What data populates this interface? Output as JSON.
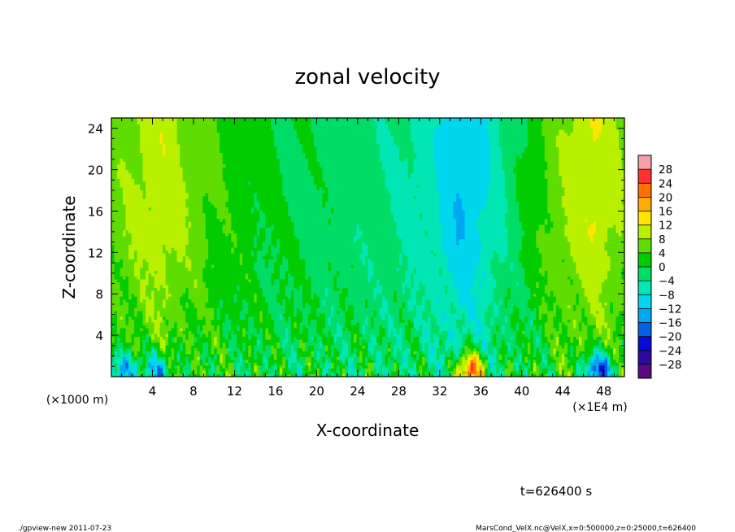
{
  "chart_data": {
    "type": "heatmap",
    "title": "zonal velocity",
    "xlabel": "X-coordinate",
    "ylabel": "Z-coordinate",
    "x_unit_label": "(×1E4 m)",
    "y_unit_label": "(×1000 m)",
    "xlim": [
      0,
      50
    ],
    "ylim": [
      0,
      25
    ],
    "x_ticks": [
      4,
      8,
      12,
      16,
      20,
      24,
      28,
      32,
      36,
      40,
      44,
      48
    ],
    "y_ticks": [
      4,
      8,
      12,
      16,
      20,
      24
    ],
    "colorbar": {
      "levels": [
        -28,
        -24,
        -20,
        -16,
        -12,
        -8,
        -4,
        0,
        4,
        8,
        12,
        16,
        20,
        24,
        28
      ],
      "labels": [
        "28",
        "24",
        "20",
        "16",
        "12",
        "8",
        "4",
        "0",
        "−4",
        "−8",
        "−12",
        "−16",
        "−20",
        "−24",
        "−28"
      ],
      "colors": [
        "#f5a0a8",
        "#ff3030",
        "#ff7000",
        "#ffaa00",
        "#ffe600",
        "#b8f000",
        "#60dd00",
        "#00cc00",
        "#00dd66",
        "#00e6b4",
        "#00d6ee",
        "#00a8f2",
        "#0060e8",
        "#0a0ad8",
        "#2a0aa0",
        "#5a0a80"
      ]
    },
    "features": {
      "column_means": [
        {
          "x": 0,
          "v": 6
        },
        {
          "x": 3,
          "v": 9
        },
        {
          "x": 5,
          "v": 11
        },
        {
          "x": 7,
          "v": 8
        },
        {
          "x": 10,
          "v": 4
        },
        {
          "x": 14,
          "v": 1
        },
        {
          "x": 20,
          "v": -1
        },
        {
          "x": 26,
          "v": -3
        },
        {
          "x": 31,
          "v": -6
        },
        {
          "x": 34,
          "v": -12
        },
        {
          "x": 36,
          "v": -9
        },
        {
          "x": 39,
          "v": -2
        },
        {
          "x": 43,
          "v": 6
        },
        {
          "x": 47,
          "v": 12
        },
        {
          "x": 50,
          "v": 7
        }
      ],
      "near_surface_extremes": [
        {
          "x": 35,
          "z": 0.6,
          "v": 22
        },
        {
          "x": 47.5,
          "z": 0.6,
          "v": -20
        },
        {
          "x": 1,
          "z": 0.6,
          "v": -14
        },
        {
          "x": 4.5,
          "z": 0.6,
          "v": -12
        }
      ]
    }
  },
  "footer": {
    "time_label": "t=626400 s",
    "program_label": "./gpview-new  2011-07-23",
    "source_label": "MarsCond_VelX.nc@VelX,x=0:500000,z=0:25000,t=626400"
  }
}
